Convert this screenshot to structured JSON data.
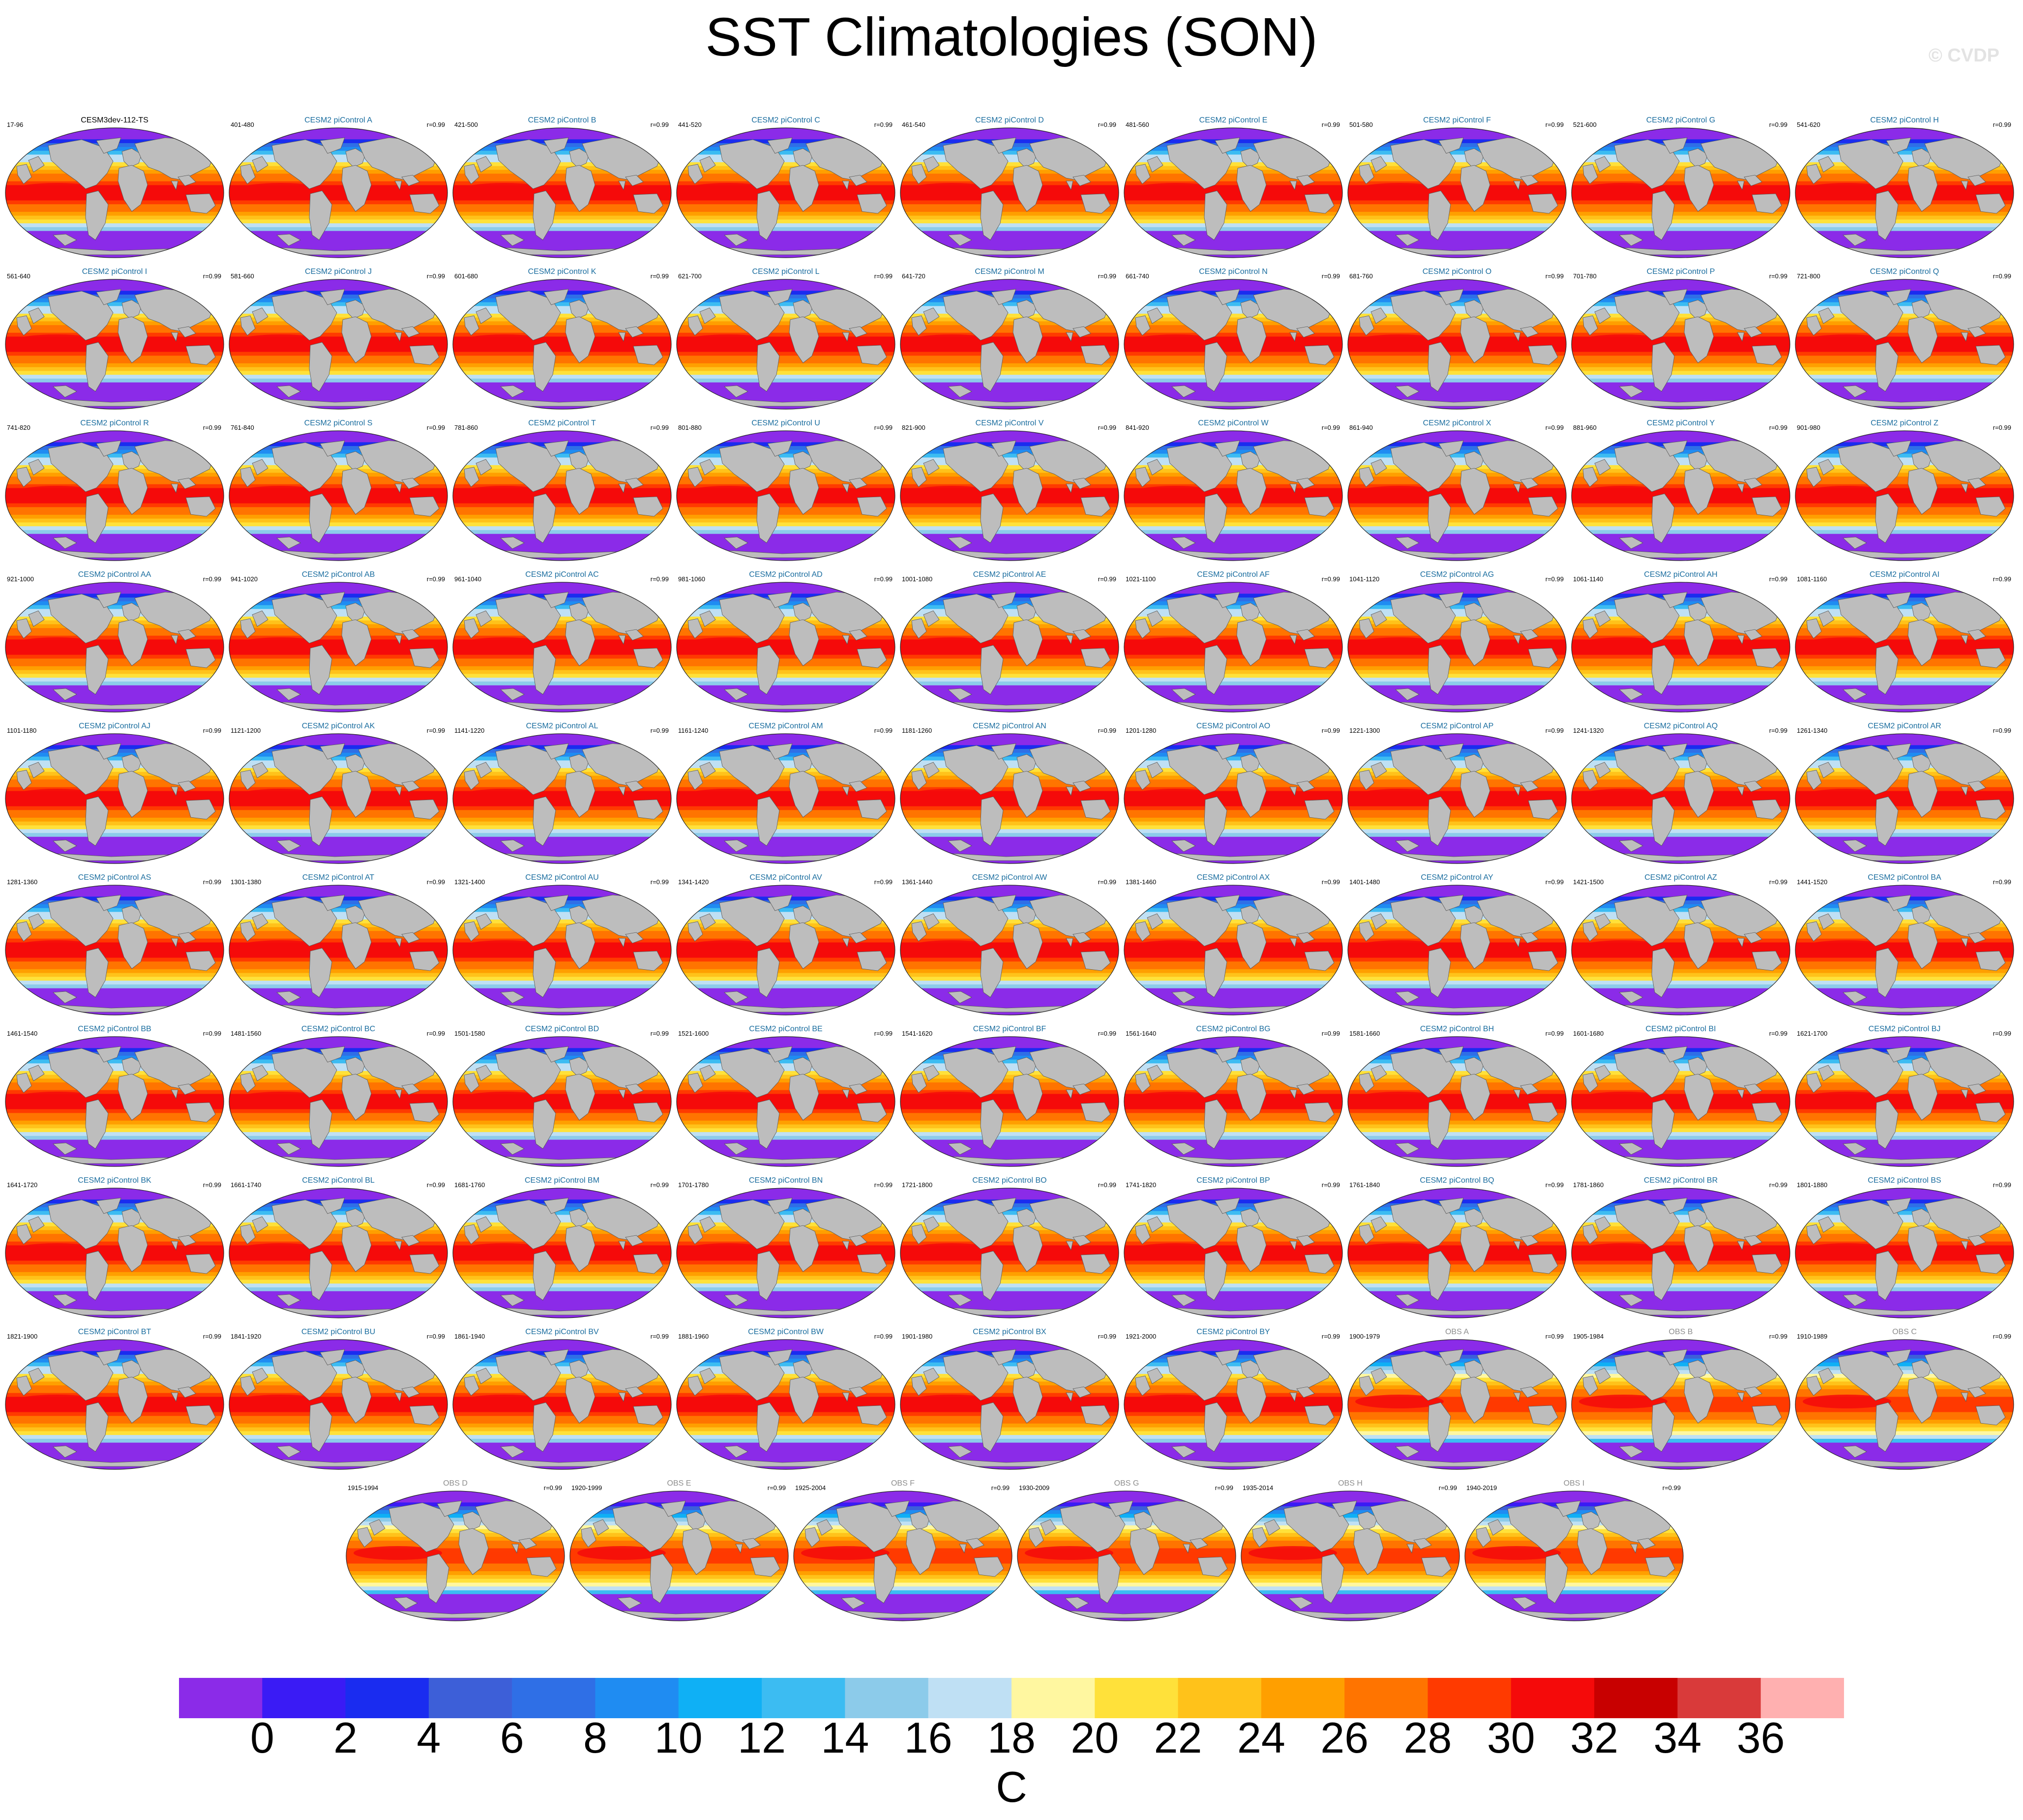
{
  "title": "SST Climatologies (SON)",
  "watermark": "© CVDP",
  "panels": [
    {
      "left": "17-96",
      "center": "CESM3dev-112-TS",
      "right": "",
      "kind": "ref"
    },
    {
      "left": "401-480",
      "center": "CESM2 piControl A",
      "right": "r=0.99",
      "kind": "model"
    },
    {
      "left": "421-500",
      "center": "CESM2 piControl B",
      "right": "r=0.99",
      "kind": "model"
    },
    {
      "left": "441-520",
      "center": "CESM2 piControl C",
      "right": "r=0.99",
      "kind": "model"
    },
    {
      "left": "461-540",
      "center": "CESM2 piControl D",
      "right": "r=0.99",
      "kind": "model"
    },
    {
      "left": "481-560",
      "center": "CESM2 piControl E",
      "right": "r=0.99",
      "kind": "model"
    },
    {
      "left": "501-580",
      "center": "CESM2 piControl F",
      "right": "r=0.99",
      "kind": "model"
    },
    {
      "left": "521-600",
      "center": "CESM2 piControl G",
      "right": "r=0.99",
      "kind": "model"
    },
    {
      "left": "541-620",
      "center": "CESM2 piControl H",
      "right": "r=0.99",
      "kind": "model"
    },
    {
      "left": "561-640",
      "center": "CESM2 piControl I",
      "right": "r=0.99",
      "kind": "model"
    },
    {
      "left": "581-660",
      "center": "CESM2 piControl J",
      "right": "r=0.99",
      "kind": "model"
    },
    {
      "left": "601-680",
      "center": "CESM2 piControl K",
      "right": "r=0.99",
      "kind": "model"
    },
    {
      "left": "621-700",
      "center": "CESM2 piControl L",
      "right": "r=0.99",
      "kind": "model"
    },
    {
      "left": "641-720",
      "center": "CESM2 piControl M",
      "right": "r=0.99",
      "kind": "model"
    },
    {
      "left": "661-740",
      "center": "CESM2 piControl N",
      "right": "r=0.99",
      "kind": "model"
    },
    {
      "left": "681-760",
      "center": "CESM2 piControl O",
      "right": "r=0.99",
      "kind": "model"
    },
    {
      "left": "701-780",
      "center": "CESM2 piControl P",
      "right": "r=0.99",
      "kind": "model"
    },
    {
      "left": "721-800",
      "center": "CESM2 piControl Q",
      "right": "r=0.99",
      "kind": "model"
    },
    {
      "left": "741-820",
      "center": "CESM2 piControl R",
      "right": "r=0.99",
      "kind": "model"
    },
    {
      "left": "761-840",
      "center": "CESM2 piControl S",
      "right": "r=0.99",
      "kind": "model"
    },
    {
      "left": "781-860",
      "center": "CESM2 piControl T",
      "right": "r=0.99",
      "kind": "model"
    },
    {
      "left": "801-880",
      "center": "CESM2 piControl U",
      "right": "r=0.99",
      "kind": "model"
    },
    {
      "left": "821-900",
      "center": "CESM2 piControl V",
      "right": "r=0.99",
      "kind": "model"
    },
    {
      "left": "841-920",
      "center": "CESM2 piControl W",
      "right": "r=0.99",
      "kind": "model"
    },
    {
      "left": "861-940",
      "center": "CESM2 piControl X",
      "right": "r=0.99",
      "kind": "model"
    },
    {
      "left": "881-960",
      "center": "CESM2 piControl Y",
      "right": "r=0.99",
      "kind": "model"
    },
    {
      "left": "901-980",
      "center": "CESM2 piControl Z",
      "right": "r=0.99",
      "kind": "model"
    },
    {
      "left": "921-1000",
      "center": "CESM2 piControl AA",
      "right": "r=0.99",
      "kind": "model"
    },
    {
      "left": "941-1020",
      "center": "CESM2 piControl AB",
      "right": "r=0.99",
      "kind": "model"
    },
    {
      "left": "961-1040",
      "center": "CESM2 piControl AC",
      "right": "r=0.99",
      "kind": "model"
    },
    {
      "left": "981-1060",
      "center": "CESM2 piControl AD",
      "right": "r=0.99",
      "kind": "model"
    },
    {
      "left": "1001-1080",
      "center": "CESM2 piControl AE",
      "right": "r=0.99",
      "kind": "model"
    },
    {
      "left": "1021-1100",
      "center": "CESM2 piControl AF",
      "right": "r=0.99",
      "kind": "model"
    },
    {
      "left": "1041-1120",
      "center": "CESM2 piControl AG",
      "right": "r=0.99",
      "kind": "model"
    },
    {
      "left": "1061-1140",
      "center": "CESM2 piControl AH",
      "right": "r=0.99",
      "kind": "model"
    },
    {
      "left": "1081-1160",
      "center": "CESM2 piControl AI",
      "right": "r=0.99",
      "kind": "model"
    },
    {
      "left": "1101-1180",
      "center": "CESM2 piControl AJ",
      "right": "r=0.99",
      "kind": "model"
    },
    {
      "left": "1121-1200",
      "center": "CESM2 piControl AK",
      "right": "r=0.99",
      "kind": "model"
    },
    {
      "left": "1141-1220",
      "center": "CESM2 piControl AL",
      "right": "r=0.99",
      "kind": "model"
    },
    {
      "left": "1161-1240",
      "center": "CESM2 piControl AM",
      "right": "r=0.99",
      "kind": "model"
    },
    {
      "left": "1181-1260",
      "center": "CESM2 piControl AN",
      "right": "r=0.99",
      "kind": "model"
    },
    {
      "left": "1201-1280",
      "center": "CESM2 piControl AO",
      "right": "r=0.99",
      "kind": "model"
    },
    {
      "left": "1221-1300",
      "center": "CESM2 piControl AP",
      "right": "r=0.99",
      "kind": "model"
    },
    {
      "left": "1241-1320",
      "center": "CESM2 piControl AQ",
      "right": "r=0.99",
      "kind": "model"
    },
    {
      "left": "1261-1340",
      "center": "CESM2 piControl AR",
      "right": "r=0.99",
      "kind": "model"
    },
    {
      "left": "1281-1360",
      "center": "CESM2 piControl AS",
      "right": "r=0.99",
      "kind": "model"
    },
    {
      "left": "1301-1380",
      "center": "CESM2 piControl AT",
      "right": "r=0.99",
      "kind": "model"
    },
    {
      "left": "1321-1400",
      "center": "CESM2 piControl AU",
      "right": "r=0.99",
      "kind": "model"
    },
    {
      "left": "1341-1420",
      "center": "CESM2 piControl AV",
      "right": "r=0.99",
      "kind": "model"
    },
    {
      "left": "1361-1440",
      "center": "CESM2 piControl AW",
      "right": "r=0.99",
      "kind": "model"
    },
    {
      "left": "1381-1460",
      "center": "CESM2 piControl AX",
      "right": "r=0.99",
      "kind": "model"
    },
    {
      "left": "1401-1480",
      "center": "CESM2 piControl AY",
      "right": "r=0.99",
      "kind": "model"
    },
    {
      "left": "1421-1500",
      "center": "CESM2 piControl AZ",
      "right": "r=0.99",
      "kind": "model"
    },
    {
      "left": "1441-1520",
      "center": "CESM2 piControl BA",
      "right": "r=0.99",
      "kind": "model"
    },
    {
      "left": "1461-1540",
      "center": "CESM2 piControl BB",
      "right": "r=0.99",
      "kind": "model"
    },
    {
      "left": "1481-1560",
      "center": "CESM2 piControl BC",
      "right": "r=0.99",
      "kind": "model"
    },
    {
      "left": "1501-1580",
      "center": "CESM2 piControl BD",
      "right": "r=0.99",
      "kind": "model"
    },
    {
      "left": "1521-1600",
      "center": "CESM2 piControl BE",
      "right": "r=0.99",
      "kind": "model"
    },
    {
      "left": "1541-1620",
      "center": "CESM2 piControl BF",
      "right": "r=0.99",
      "kind": "model"
    },
    {
      "left": "1561-1640",
      "center": "CESM2 piControl BG",
      "right": "r=0.99",
      "kind": "model"
    },
    {
      "left": "1581-1660",
      "center": "CESM2 piControl BH",
      "right": "r=0.99",
      "kind": "model"
    },
    {
      "left": "1601-1680",
      "center": "CESM2 piControl BI",
      "right": "r=0.99",
      "kind": "model"
    },
    {
      "left": "1621-1700",
      "center": "CESM2 piControl BJ",
      "right": "r=0.99",
      "kind": "model"
    },
    {
      "left": "1641-1720",
      "center": "CESM2 piControl BK",
      "right": "r=0.99",
      "kind": "model"
    },
    {
      "left": "1661-1740",
      "center": "CESM2 piControl BL",
      "right": "r=0.99",
      "kind": "model"
    },
    {
      "left": "1681-1760",
      "center": "CESM2 piControl BM",
      "right": "r=0.99",
      "kind": "model"
    },
    {
      "left": "1701-1780",
      "center": "CESM2 piControl BN",
      "right": "r=0.99",
      "kind": "model"
    },
    {
      "left": "1721-1800",
      "center": "CESM2 piControl BO",
      "right": "r=0.99",
      "kind": "model"
    },
    {
      "left": "1741-1820",
      "center": "CESM2 piControl BP",
      "right": "r=0.99",
      "kind": "model"
    },
    {
      "left": "1761-1840",
      "center": "CESM2 piControl BQ",
      "right": "r=0.99",
      "kind": "model"
    },
    {
      "left": "1781-1860",
      "center": "CESM2 piControl BR",
      "right": "r=0.99",
      "kind": "model"
    },
    {
      "left": "1801-1880",
      "center": "CESM2 piControl BS",
      "right": "r=0.99",
      "kind": "model"
    },
    {
      "left": "1821-1900",
      "center": "CESM2 piControl BT",
      "right": "r=0.99",
      "kind": "model"
    },
    {
      "left": "1841-1920",
      "center": "CESM2 piControl BU",
      "right": "r=0.99",
      "kind": "model"
    },
    {
      "left": "1861-1940",
      "center": "CESM2 piControl BV",
      "right": "r=0.99",
      "kind": "model"
    },
    {
      "left": "1881-1960",
      "center": "CESM2 piControl BW",
      "right": "r=0.99",
      "kind": "model"
    },
    {
      "left": "1901-1980",
      "center": "CESM2 piControl BX",
      "right": "r=0.99",
      "kind": "model"
    },
    {
      "left": "1921-2000",
      "center": "CESM2 piControl BY",
      "right": "r=0.99",
      "kind": "model"
    },
    {
      "left": "1900-1979",
      "center": "OBS A",
      "right": "r=0.99",
      "kind": "obs"
    },
    {
      "left": "1905-1984",
      "center": "OBS B",
      "right": "r=0.99",
      "kind": "obs"
    },
    {
      "left": "1910-1989",
      "center": "OBS C",
      "right": "r=0.99",
      "kind": "obs"
    },
    {
      "left": "1915-1994",
      "center": "OBS D",
      "right": "r=0.99",
      "kind": "obs"
    },
    {
      "left": "1920-1999",
      "center": "OBS E",
      "right": "r=0.99",
      "kind": "obs"
    },
    {
      "left": "1925-2004",
      "center": "OBS F",
      "right": "r=0.99",
      "kind": "obs"
    },
    {
      "left": "1930-2009",
      "center": "OBS G",
      "right": "r=0.99",
      "kind": "obs"
    },
    {
      "left": "1935-2014",
      "center": "OBS H",
      "right": "r=0.99",
      "kind": "obs"
    },
    {
      "left": "1940-2019",
      "center": "OBS I",
      "right": "r=0.99",
      "kind": "obs"
    }
  ],
  "chart_data": {
    "type": "heatmap",
    "title": "SST Climatologies (SON)",
    "projection": "global map panels",
    "colorbar": {
      "unit": "C",
      "ticks": [
        "0",
        "2",
        "4",
        "6",
        "8",
        "10",
        "12",
        "14",
        "16",
        "18",
        "20",
        "22",
        "24",
        "26",
        "28",
        "30",
        "32",
        "34",
        "36"
      ],
      "colors": [
        "#8b2be8",
        "#3a1bf5",
        "#1a2cf0",
        "#3d5fd8",
        "#2f6fe6",
        "#1f8cf2",
        "#0fb0f5",
        "#3cbcf2",
        "#8ccbea",
        "#bfe0f4",
        "#fff7a0",
        "#ffe13a",
        "#ffc21a",
        "#ff9f00",
        "#ff7400",
        "#ff3a00",
        "#f50a0a",
        "#c80000",
        "#d93a3a",
        "#ffb0b0"
      ]
    }
  }
}
